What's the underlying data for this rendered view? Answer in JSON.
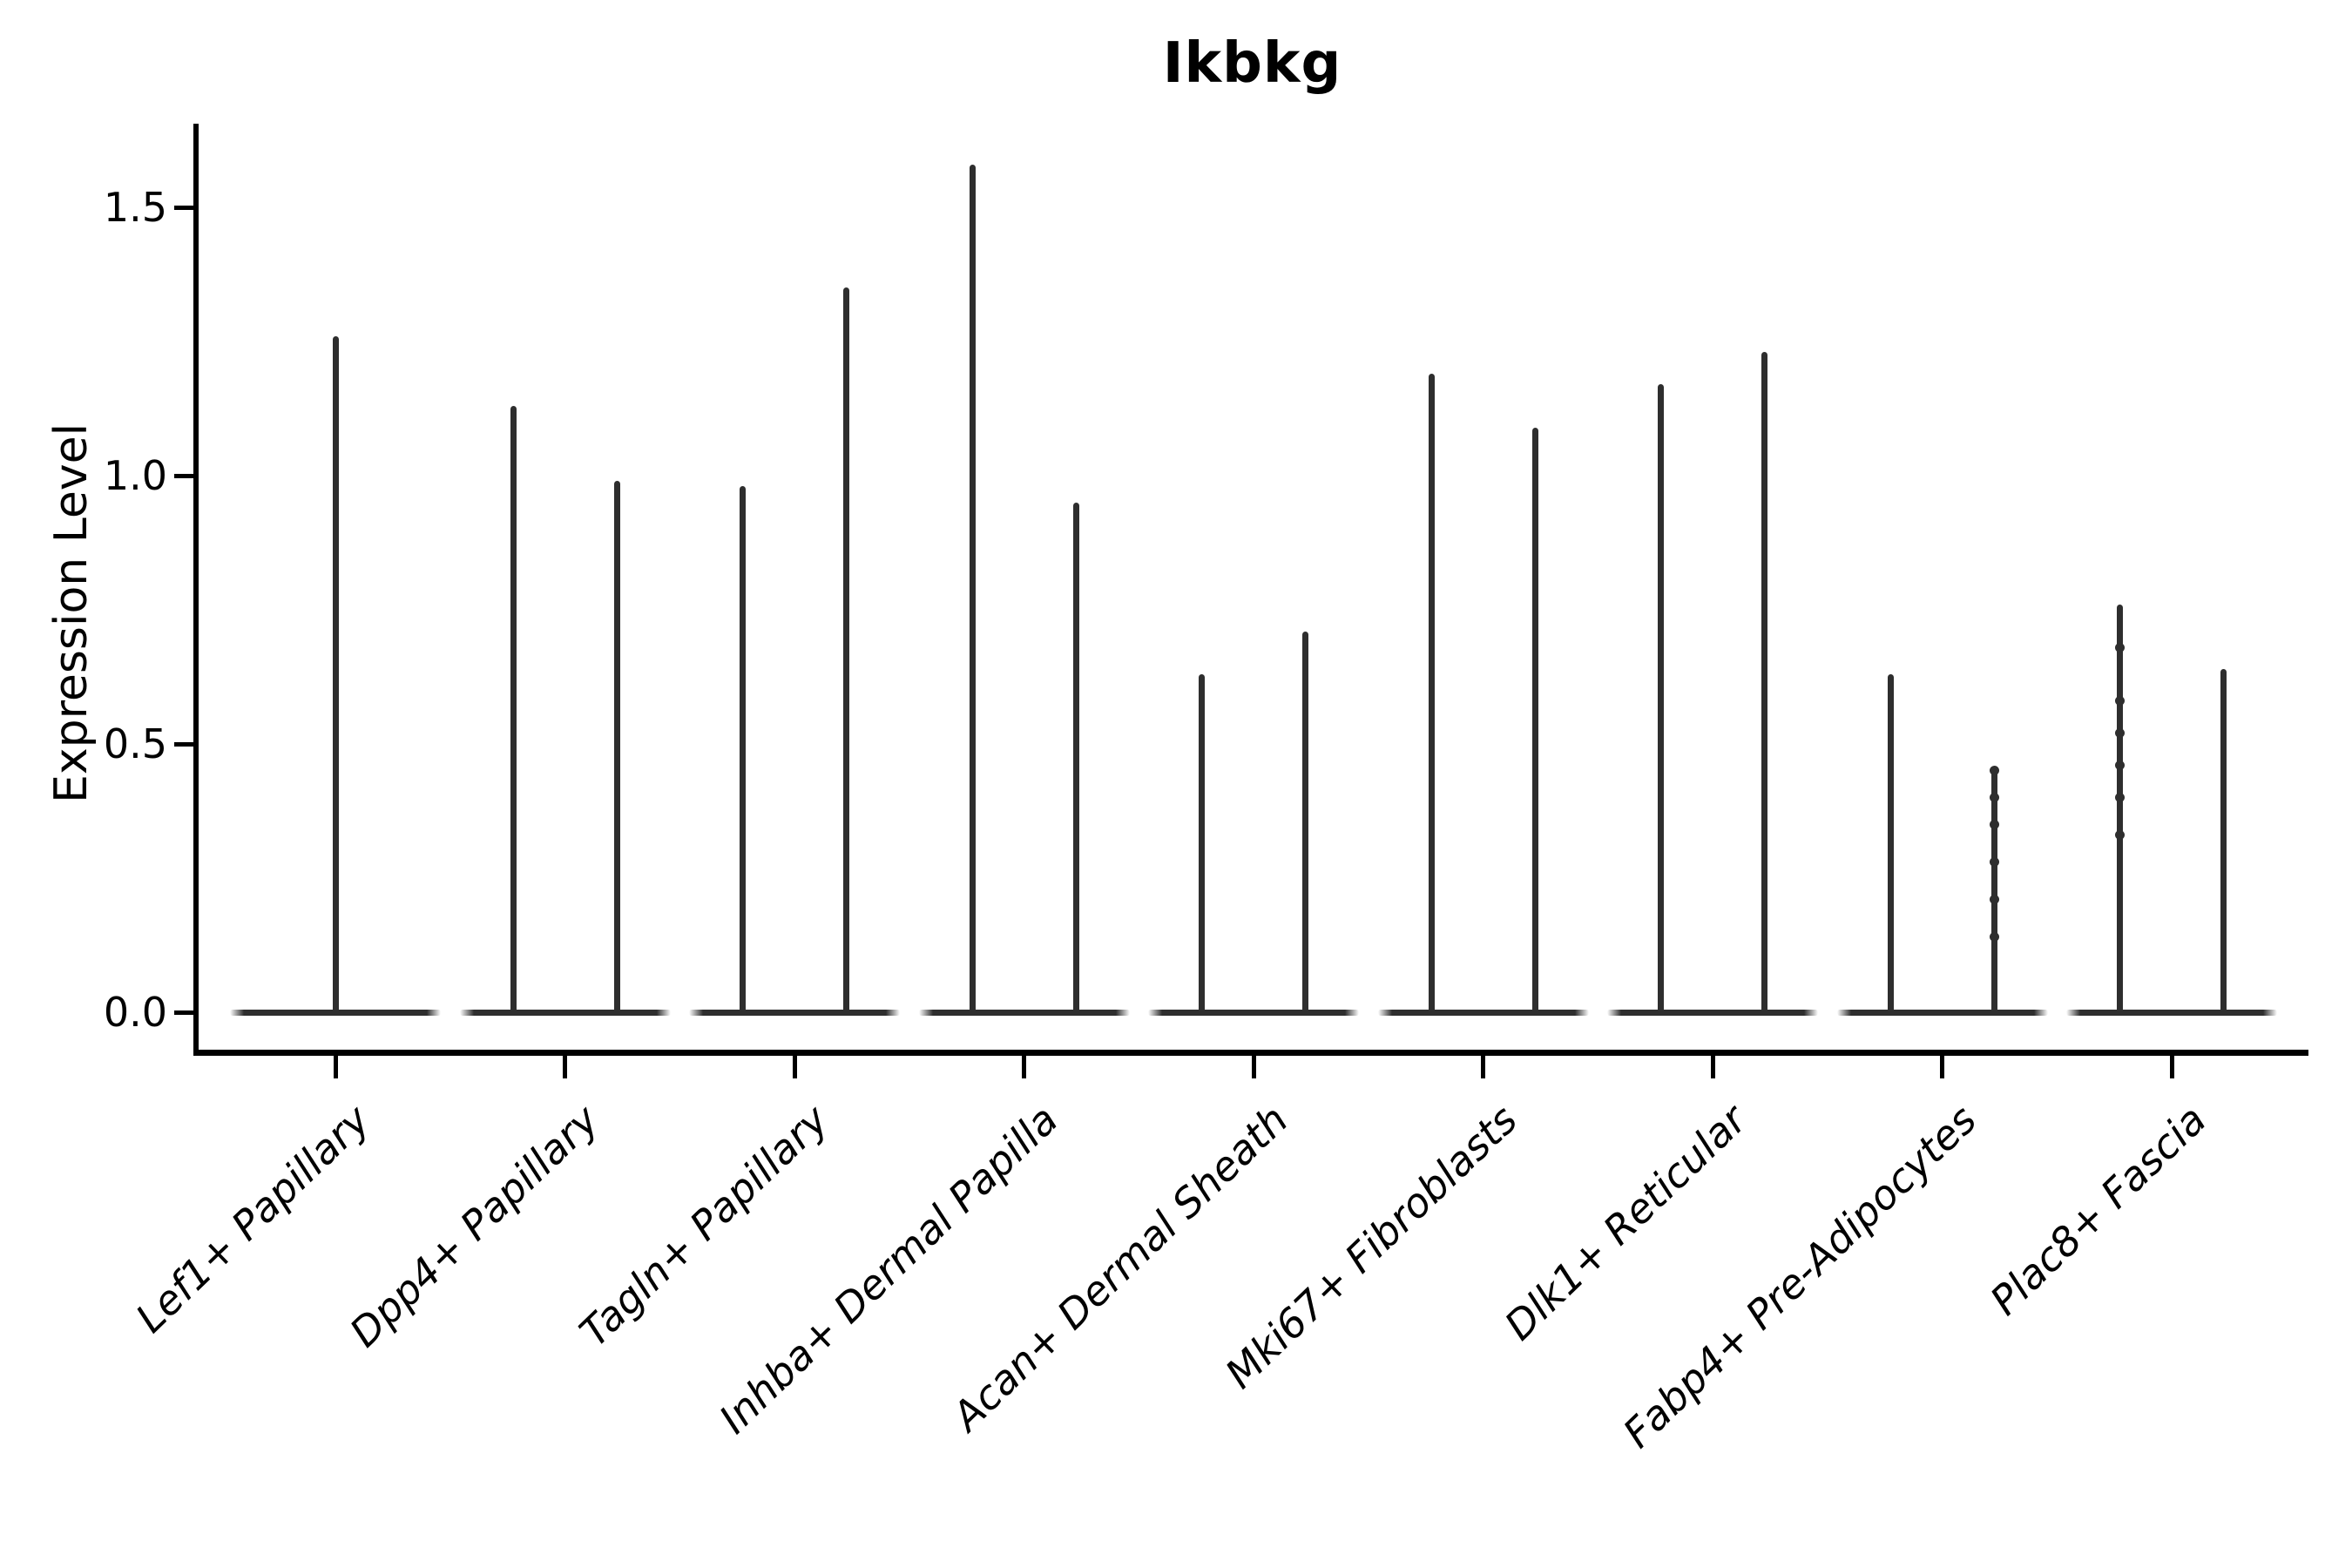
{
  "title": "Ikbkg",
  "axes": {
    "ylabel": "Expression Level",
    "ytick_labels": [
      "0.0",
      "0.5",
      "1.0",
      "1.5"
    ],
    "ytick_values": [
      0.0,
      0.5,
      1.0,
      1.5
    ]
  },
  "colors": {
    "line": "#2e2e2e",
    "spine": "#000000",
    "text": "#000000",
    "background": "#ffffff"
  },
  "chart_data": {
    "type": "violin",
    "title": "Ikbkg",
    "xlabel": "",
    "ylabel": "Expression Level",
    "ylim": [
      -0.07,
      1.66
    ],
    "yticks": [
      0.0,
      0.5,
      1.0,
      1.5
    ],
    "grid": false,
    "legend": "none",
    "style_note": "Single-cell expression violins: wide flat density base at 0 with a thin spike rising to the maximum expression value; first category has one centered violin, all others have two adjacent violins; sparse jitter dots visible on Fabp4+ second violin and Plac8+ first violin.",
    "categories": [
      "Lef1+ Papillary",
      "Dpp4+ Papillary",
      "Tagln+ Papillary",
      "Inhba+ Dermal Papilla",
      "Acan+ Dermal Sheath",
      "Mki67+ Fibroblasts",
      "Dlk1+ Reticular",
      "Fabp4+ Pre-Adipocytes",
      "Plac8+ Fascia"
    ],
    "series": [
      {
        "category": "Lef1+ Papillary",
        "violins": [
          {
            "max": 1.26
          }
        ]
      },
      {
        "category": "Dpp4+ Papillary",
        "violins": [
          {
            "max": 1.13
          },
          {
            "max": 0.99
          }
        ]
      },
      {
        "category": "Tagln+ Papillary",
        "violins": [
          {
            "max": 0.98
          },
          {
            "max": 1.35
          }
        ]
      },
      {
        "category": "Inhba+ Dermal Papilla",
        "violins": [
          {
            "max": 1.58
          },
          {
            "max": 0.95
          }
        ]
      },
      {
        "category": "Acan+ Dermal Sheath",
        "violins": [
          {
            "max": 0.63
          },
          {
            "max": 0.71
          }
        ]
      },
      {
        "category": "Mki67+ Fibroblasts",
        "violins": [
          {
            "max": 1.19
          },
          {
            "max": 1.09
          }
        ]
      },
      {
        "category": "Dlk1+ Reticular",
        "violins": [
          {
            "max": 1.17
          },
          {
            "max": 1.23
          }
        ]
      },
      {
        "category": "Fabp4+ Pre-Adipocytes",
        "violins": [
          {
            "max": 0.63
          },
          {
            "max": 0.45,
            "dots": [
              0.45,
              0.4,
              0.35,
              0.28,
              0.21,
              0.14
            ]
          }
        ]
      },
      {
        "category": "Plac8+ Fascia",
        "violins": [
          {
            "max": 0.76,
            "dots": [
              0.68,
              0.58,
              0.52,
              0.46,
              0.4,
              0.33
            ]
          },
          {
            "max": 0.64
          }
        ]
      }
    ]
  }
}
